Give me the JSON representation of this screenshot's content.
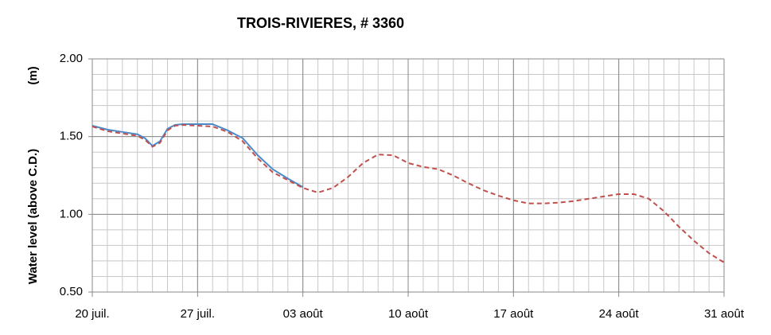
{
  "chart_data": {
    "type": "line",
    "title": "TROIS-RIVIERES, # 3360",
    "ylabel": "Water level (above C.D.)",
    "yunit": "(m)",
    "x": [
      0,
      1,
      2,
      3,
      3.5,
      4,
      4.5,
      5,
      5.5,
      6,
      7,
      8,
      9,
      10,
      11,
      12,
      13,
      14,
      15,
      16,
      17,
      18,
      19,
      20,
      21,
      22,
      23,
      24,
      25,
      26,
      27,
      28,
      29,
      30,
      31,
      32,
      33,
      34,
      35,
      36,
      37,
      38,
      39,
      40,
      41,
      42
    ],
    "series": [
      {
        "color": "#4a8ac9",
        "dashed": false,
        "values": [
          1.57,
          1.545,
          1.53,
          1.515,
          1.49,
          1.44,
          1.47,
          1.55,
          1.575,
          1.58,
          1.58,
          1.58,
          1.54,
          1.49,
          1.38,
          1.29,
          1.23,
          1.175,
          null,
          null,
          null,
          null,
          null,
          null,
          null,
          null,
          null,
          null,
          null,
          null,
          null,
          null,
          null,
          null,
          null,
          null,
          null,
          null,
          null,
          null,
          null,
          null,
          null,
          null,
          null,
          null
        ]
      },
      {
        "color": "#c0504d",
        "dashed": true,
        "values": [
          1.565,
          1.535,
          1.52,
          1.505,
          1.48,
          1.435,
          1.46,
          1.54,
          1.57,
          1.575,
          1.57,
          1.565,
          1.53,
          1.47,
          1.36,
          1.27,
          1.22,
          1.17,
          1.14,
          1.17,
          1.24,
          1.33,
          1.385,
          1.38,
          1.33,
          1.305,
          1.29,
          1.25,
          1.2,
          1.155,
          1.12,
          1.09,
          1.07,
          1.07,
          1.075,
          1.085,
          1.1,
          1.115,
          1.13,
          1.13,
          1.1,
          1.02,
          0.92,
          0.83,
          0.75,
          0.69
        ]
      }
    ],
    "xlim": [
      0,
      42
    ],
    "xticks": [
      {
        "value": 0,
        "label": "20 juil."
      },
      {
        "value": 7,
        "label": "27 juil."
      },
      {
        "value": 14,
        "label": "03 août"
      },
      {
        "value": 21,
        "label": "10 août"
      },
      {
        "value": 28,
        "label": "17 août"
      },
      {
        "value": 35,
        "label": "24 août"
      },
      {
        "value": 42,
        "label": "31 août"
      }
    ],
    "ylim": [
      0.5,
      2
    ],
    "yticks": [
      {
        "value": 0.5,
        "label": "0.50"
      },
      {
        "value": 1,
        "label": "1.00"
      },
      {
        "value": 1.5,
        "label": "1.50"
      },
      {
        "value": 2,
        "label": "2.00"
      }
    ],
    "grid": true,
    "minor_grid": {
      "x_step": 1,
      "y_step": 0.1
    }
  }
}
